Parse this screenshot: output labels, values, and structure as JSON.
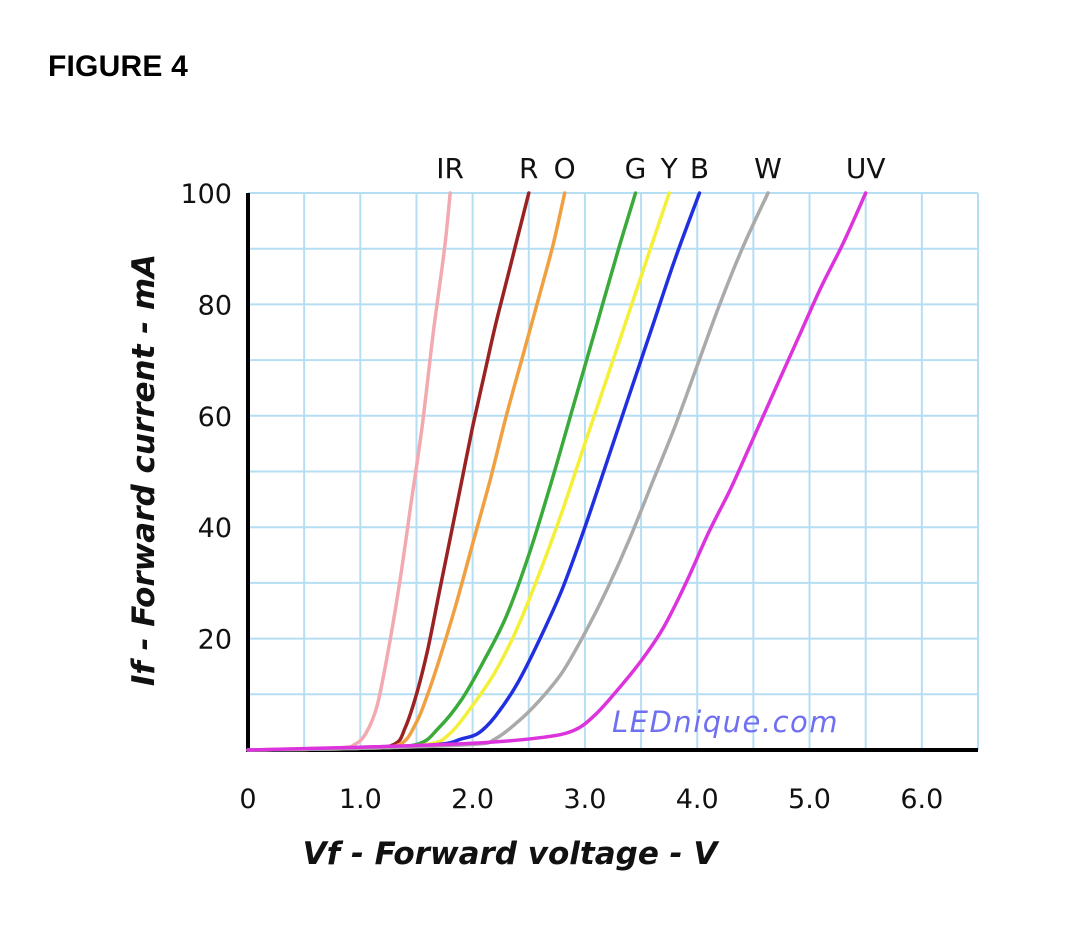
{
  "figure_label": "FIGURE 4",
  "watermark": "LEDnique.com",
  "chart_data": {
    "type": "line",
    "title": "",
    "xlabel": "Vf - Forward voltage - V",
    "ylabel": "If - Forward current - mA",
    "xlim": [
      0,
      6.5
    ],
    "ylim": [
      0,
      100
    ],
    "x_ticks": [
      0,
      1.0,
      2.0,
      3.0,
      4.0,
      5.0,
      6.0
    ],
    "x_tick_labels": [
      "0",
      "1.0",
      "2.0",
      "3.0",
      "4.0",
      "5.0",
      "6.0"
    ],
    "y_ticks": [
      20,
      40,
      60,
      80,
      100
    ],
    "y_tick_labels": [
      "20",
      "40",
      "60",
      "80",
      "100"
    ],
    "grid": true,
    "legend": "series labels printed above top edge",
    "series": [
      {
        "name": "IR",
        "color": "#f2aab0",
        "points": [
          [
            0,
            0
          ],
          [
            0.8,
            0.4
          ],
          [
            0.95,
            1
          ],
          [
            1.05,
            3
          ],
          [
            1.15,
            8
          ],
          [
            1.25,
            18
          ],
          [
            1.35,
            30
          ],
          [
            1.45,
            44
          ],
          [
            1.55,
            58
          ],
          [
            1.65,
            75
          ],
          [
            1.75,
            90
          ],
          [
            1.8,
            100
          ]
        ]
      },
      {
        "name": "R",
        "color": "#9b2222",
        "points": [
          [
            0,
            0
          ],
          [
            1.0,
            0.3
          ],
          [
            1.3,
            1
          ],
          [
            1.4,
            4
          ],
          [
            1.5,
            10
          ],
          [
            1.6,
            18
          ],
          [
            1.7,
            28
          ],
          [
            1.8,
            38
          ],
          [
            1.9,
            48
          ],
          [
            2.0,
            58
          ],
          [
            2.1,
            67
          ],
          [
            2.2,
            76
          ],
          [
            2.3,
            84
          ],
          [
            2.4,
            92
          ],
          [
            2.5,
            100
          ]
        ]
      },
      {
        "name": "O",
        "color": "#f0a040",
        "points": [
          [
            0,
            0
          ],
          [
            1.0,
            0.3
          ],
          [
            1.35,
            1
          ],
          [
            1.5,
            5
          ],
          [
            1.6,
            10
          ],
          [
            1.7,
            16
          ],
          [
            1.85,
            26
          ],
          [
            2.0,
            37
          ],
          [
            2.15,
            48
          ],
          [
            2.3,
            60
          ],
          [
            2.45,
            71
          ],
          [
            2.6,
            82
          ],
          [
            2.72,
            91
          ],
          [
            2.82,
            100
          ]
        ]
      },
      {
        "name": "G",
        "color": "#3aaa3a",
        "points": [
          [
            0,
            0
          ],
          [
            1.0,
            0.3
          ],
          [
            1.5,
            1
          ],
          [
            1.7,
            4
          ],
          [
            1.9,
            9
          ],
          [
            2.1,
            16
          ],
          [
            2.3,
            24
          ],
          [
            2.5,
            35
          ],
          [
            2.7,
            48
          ],
          [
            2.9,
            62
          ],
          [
            3.1,
            76
          ],
          [
            3.3,
            90
          ],
          [
            3.45,
            100
          ]
        ]
      },
      {
        "name": "Y",
        "color": "#f4f03a",
        "points": [
          [
            0,
            0
          ],
          [
            1.0,
            0.3
          ],
          [
            1.6,
            1
          ],
          [
            1.8,
            3
          ],
          [
            2.0,
            8
          ],
          [
            2.2,
            14
          ],
          [
            2.4,
            22
          ],
          [
            2.6,
            32
          ],
          [
            2.8,
            43
          ],
          [
            3.0,
            55
          ],
          [
            3.2,
            67
          ],
          [
            3.4,
            79
          ],
          [
            3.6,
            91
          ],
          [
            3.75,
            100
          ]
        ]
      },
      {
        "name": "B",
        "color": "#2030e0",
        "points": [
          [
            0,
            0
          ],
          [
            1.0,
            0.3
          ],
          [
            1.7,
            1
          ],
          [
            1.9,
            2
          ],
          [
            2.05,
            3
          ],
          [
            2.2,
            6
          ],
          [
            2.4,
            12
          ],
          [
            2.6,
            20
          ],
          [
            2.8,
            29
          ],
          [
            3.0,
            40
          ],
          [
            3.2,
            52
          ],
          [
            3.4,
            64
          ],
          [
            3.6,
            76
          ],
          [
            3.8,
            88
          ],
          [
            4.02,
            100
          ]
        ]
      },
      {
        "name": "W",
        "color": "#aaaaaa",
        "points": [
          [
            0,
            0
          ],
          [
            1.0,
            0.3
          ],
          [
            2.0,
            1
          ],
          [
            2.2,
            2
          ],
          [
            2.4,
            5
          ],
          [
            2.6,
            9
          ],
          [
            2.8,
            14
          ],
          [
            3.0,
            21
          ],
          [
            3.2,
            29
          ],
          [
            3.4,
            38
          ],
          [
            3.6,
            48
          ],
          [
            3.8,
            58
          ],
          [
            4.0,
            69
          ],
          [
            4.2,
            80
          ],
          [
            4.4,
            90
          ],
          [
            4.63,
            100
          ]
        ]
      },
      {
        "name": "UV",
        "color": "#dd33dd",
        "points": [
          [
            0,
            0
          ],
          [
            1.0,
            0.5
          ],
          [
            2.0,
            1.2
          ],
          [
            2.6,
            2.2
          ],
          [
            2.9,
            3.5
          ],
          [
            3.1,
            6.5
          ],
          [
            3.3,
            11
          ],
          [
            3.5,
            16
          ],
          [
            3.7,
            22
          ],
          [
            3.9,
            30
          ],
          [
            4.1,
            39
          ],
          [
            4.3,
            47
          ],
          [
            4.5,
            56
          ],
          [
            4.7,
            65
          ],
          [
            4.9,
            74
          ],
          [
            5.1,
            83
          ],
          [
            5.3,
            91
          ],
          [
            5.5,
            100
          ]
        ]
      }
    ]
  }
}
